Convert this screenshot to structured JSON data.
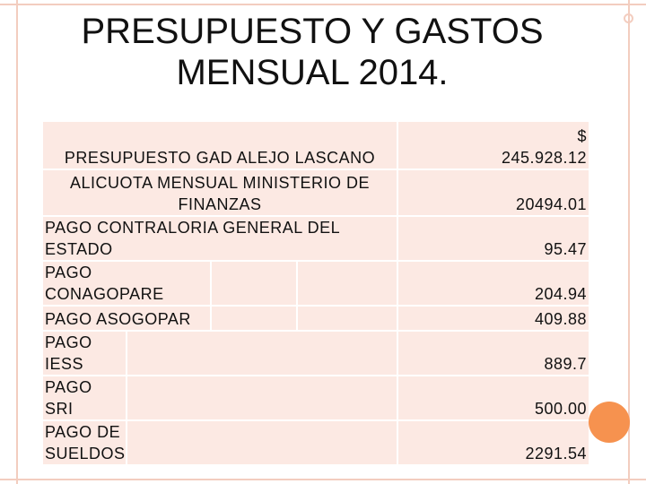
{
  "slide": {
    "title_line1": "PRESUPUESTO Y GASTOS",
    "title_line2": "MENSUAL 2014.",
    "accent_color": "#f6924f",
    "cell_color": "#fce9e3"
  },
  "table": {
    "rows": [
      {
        "label": "PRESUPUESTO GAD ALEJO LASCANO",
        "value_line1": "$",
        "value_line2": "245.928.12"
      },
      {
        "label_line1": "ALICUOTA MENSUAL MINISTERIO DE",
        "label_line2": "FINANZAS",
        "value": "20494.01"
      },
      {
        "label_line1": "PAGO CONTRALORIA GENERAL DEL",
        "label_line2": "ESTADO",
        "value": "95.47"
      },
      {
        "label_line1": "PAGO",
        "label_line2": "CONAGOPARE",
        "value": "204.94"
      },
      {
        "label": "PAGO ASOGOPAR",
        "value": "409.88"
      },
      {
        "label_line1": "PAGO",
        "label_line2": "IESS",
        "value": "889.7"
      },
      {
        "label_line1": "PAGO",
        "label_line2": "SRI",
        "value": "500.00"
      },
      {
        "label_line1": "PAGO DE",
        "label_line2": "SUELDOS",
        "value": "2291.54"
      }
    ]
  }
}
